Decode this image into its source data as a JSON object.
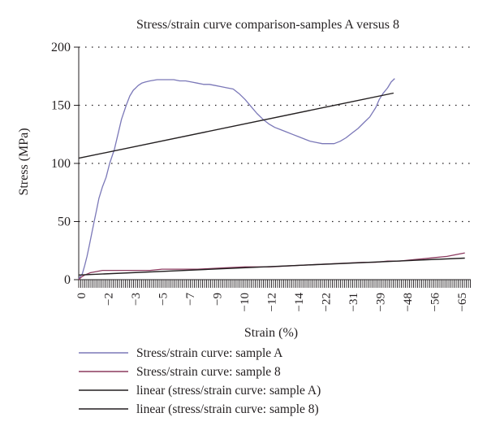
{
  "chart_data": {
    "type": "line",
    "title": "Stress/strain curve comparison-samples A versus 8",
    "xlabel": "Strain (%)",
    "ylabel": "Stress (MPa)",
    "ylim": [
      0,
      200
    ],
    "yticks": [
      "0",
      "50",
      "100",
      "150",
      "200"
    ],
    "xticks": [
      "0",
      "−2",
      "−3",
      "−5",
      "−7",
      "−9",
      "−10",
      "−12",
      "−14",
      "−22",
      "−31",
      "−39",
      "−48",
      "−56",
      "−65"
    ],
    "grid": "horizontal dotted",
    "legend_position": "bottom",
    "series": [
      {
        "name": "Stress/strain curve: sample A",
        "color": "#7b78b8",
        "x": [
          0.0,
          0.3,
          0.5,
          0.7,
          0.9,
          1.1,
          1.3,
          1.5,
          1.7,
          2.0,
          2.3,
          2.6,
          3.0,
          3.3,
          3.6,
          4.0,
          4.3,
          4.6,
          4.8,
          5.0,
          5.3,
          5.6,
          6.0,
          6.6,
          7.0,
          7.5,
          8.0,
          8.5,
          9.0,
          9.5,
          10.0,
          10.5,
          11.0,
          11.5,
          12.0,
          12.5,
          13.0,
          13.5,
          14.0,
          14.5,
          15.0,
          15.5,
          16.0,
          16.5,
          17.0,
          17.5,
          18.0,
          18.5,
          19.0,
          19.5,
          20.0,
          20.5,
          21.0,
          21.5,
          22.0,
          22.5,
          23.0,
          23.5,
          24.0,
          24.5,
          25.0,
          25.3,
          25.6,
          26.0,
          26.3,
          26.6
        ],
        "y": [
          1,
          5,
          12,
          20,
          30,
          40,
          50,
          60,
          70,
          80,
          88,
          100,
          112,
          125,
          138,
          150,
          158,
          163,
          165,
          167,
          169,
          170,
          171,
          172,
          172,
          172,
          172,
          171,
          171,
          170,
          169,
          168,
          168,
          167,
          166,
          165,
          164,
          160,
          155,
          149,
          143,
          138,
          134,
          131,
          129,
          127,
          125,
          123,
          121,
          119,
          118,
          117,
          117,
          117,
          119,
          122,
          126,
          130,
          135,
          140,
          148,
          155,
          160,
          165,
          170,
          173
        ]
      },
      {
        "name": "Stress/strain curve: sample 8",
        "color": "#8c3a5f",
        "x": [
          0.0,
          0.2,
          0.5,
          1.0,
          1.5,
          2.0,
          3.0,
          4.0,
          5.0,
          6.0,
          7.0,
          8.0,
          10.0,
          12.0,
          14.0,
          16.0,
          18.0,
          20.0,
          22.0,
          24.0,
          25.0,
          26.0,
          27.0,
          28.0,
          29.0,
          30.0,
          31.0,
          32.0,
          32.5
        ],
        "y": [
          0,
          2,
          4,
          6,
          7,
          8,
          8,
          8,
          8,
          8,
          9,
          9,
          9,
          10,
          11,
          11,
          12,
          13,
          14,
          15,
          15,
          16,
          16,
          17,
          18,
          19,
          20,
          22,
          23
        ]
      },
      {
        "name": "linear (stress/strain curve: sample A)",
        "color": "#231f20",
        "x": [
          0,
          26.5
        ],
        "y": [
          104.5,
          160.5
        ]
      },
      {
        "name": "linear (stress/strain curve: sample 8)",
        "color": "#231f20",
        "x": [
          0,
          32.5
        ],
        "y": [
          4,
          18.5
        ]
      }
    ]
  }
}
